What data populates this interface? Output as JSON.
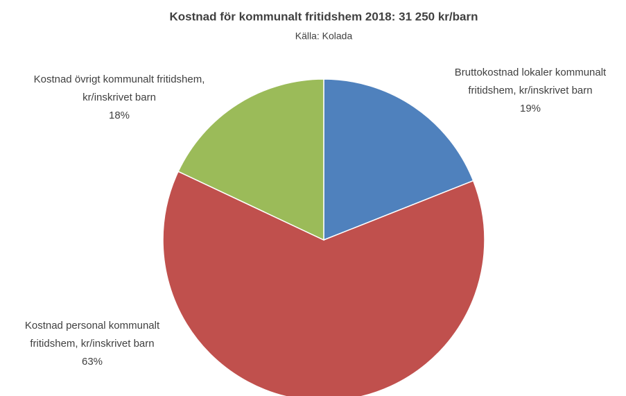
{
  "chart_data": {
    "type": "pie",
    "title": "Kostnad för kommunalt fritidshem 2018: 31 250 kr/barn",
    "subtitle": "Källa: Kolada",
    "categories": [
      "Bruttokostnad lokaler kommunalt fritidshem, kr/inskrivet barn",
      "Kostnad personal kommunalt fritidshem, kr/inskrivet barn",
      "Kostnad övrigt kommunalt fritidshem, kr/inskrivet barn"
    ],
    "values": [
      19,
      63,
      18
    ],
    "value_labels": [
      "19%",
      "63%",
      "18%"
    ],
    "colors": [
      "#4f81bd",
      "#c0504d",
      "#9bbb59"
    ]
  }
}
